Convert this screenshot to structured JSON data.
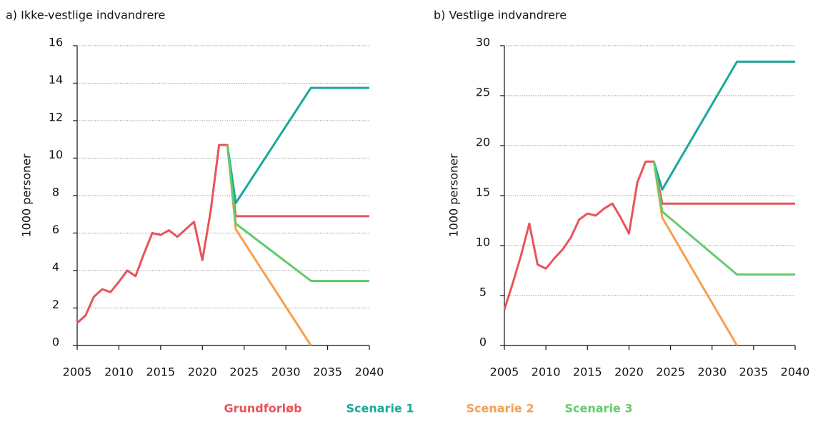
{
  "chart_data": [
    {
      "type": "line",
      "title": "a) Ikke-vestlige indvandrere",
      "ylabel": "1000 personer",
      "xlim": [
        2005,
        2040
      ],
      "xticks": [
        2005,
        2010,
        2015,
        2020,
        2025,
        2030,
        2035,
        2040
      ],
      "ylim": [
        0,
        16
      ],
      "yticks": [
        0,
        2,
        4,
        6,
        8,
        10,
        12,
        14,
        16
      ],
      "grid": true,
      "series": [
        {
          "name": "Grundforløb",
          "color": "#e8545a",
          "x": [
            2005,
            2006,
            2007,
            2008,
            2009,
            2010,
            2011,
            2012,
            2013,
            2014,
            2015,
            2016,
            2017,
            2018,
            2019,
            2020,
            2021,
            2022,
            2023,
            2024,
            2040
          ],
          "values": [
            1.2,
            1.6,
            2.6,
            3.0,
            2.85,
            3.4,
            4.0,
            3.7,
            4.9,
            6.0,
            5.9,
            6.15,
            5.8,
            6.2,
            6.6,
            4.55,
            7.2,
            10.7,
            10.7,
            6.9,
            6.9
          ]
        },
        {
          "name": "Scenarie 1",
          "color": "#1aa89a",
          "x": [
            2023,
            2024,
            2033,
            2040
          ],
          "values": [
            10.7,
            7.6,
            13.75,
            13.75
          ]
        },
        {
          "name": "Scenarie 2",
          "color": "#f5a04f",
          "x": [
            2023,
            2024,
            2033
          ],
          "values": [
            10.7,
            6.2,
            0
          ]
        },
        {
          "name": "Scenarie 3",
          "color": "#62cc6a",
          "x": [
            2023,
            2024,
            2033,
            2040
          ],
          "values": [
            10.7,
            6.5,
            3.45,
            3.45
          ]
        }
      ]
    },
    {
      "type": "line",
      "title": "b) Vestlige indvandrere",
      "ylabel": "1000 personer",
      "xlim": [
        2005,
        2040
      ],
      "xticks": [
        2005,
        2010,
        2015,
        2020,
        2025,
        2030,
        2035,
        2040
      ],
      "ylim": [
        0,
        30
      ],
      "yticks": [
        0,
        5,
        10,
        15,
        20,
        25,
        30
      ],
      "grid": true,
      "series": [
        {
          "name": "Grundforløb",
          "color": "#e8545a",
          "x": [
            2005,
            2006,
            2007,
            2008,
            2009,
            2010,
            2011,
            2012,
            2013,
            2014,
            2015,
            2016,
            2017,
            2018,
            2019,
            2020,
            2021,
            2022,
            2023,
            2024,
            2040
          ],
          "values": [
            3.6,
            6.2,
            9.0,
            12.2,
            8.1,
            7.7,
            8.7,
            9.6,
            10.8,
            12.6,
            13.2,
            13.0,
            13.7,
            14.2,
            12.8,
            11.2,
            16.3,
            18.4,
            18.4,
            14.2,
            14.2
          ]
        },
        {
          "name": "Scenarie 1",
          "color": "#1aa89a",
          "x": [
            2023,
            2024,
            2033,
            2040
          ],
          "values": [
            18.4,
            15.6,
            28.4,
            28.4
          ]
        },
        {
          "name": "Scenarie 2",
          "color": "#f5a04f",
          "x": [
            2023,
            2024,
            2033
          ],
          "values": [
            18.4,
            12.8,
            0
          ]
        },
        {
          "name": "Scenarie 3",
          "color": "#62cc6a",
          "x": [
            2023,
            2024,
            2033,
            2040
          ],
          "values": [
            18.4,
            13.4,
            7.1,
            7.1
          ]
        }
      ]
    }
  ]
}
